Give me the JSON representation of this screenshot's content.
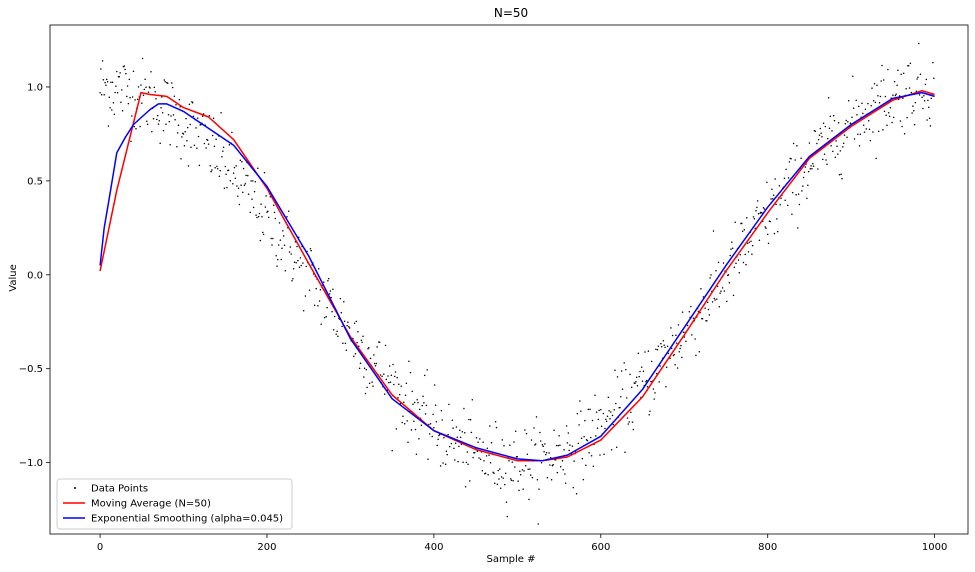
{
  "chart_data": {
    "type": "line",
    "title": "N=50",
    "xlabel": "Sample #",
    "ylabel": "Value",
    "xlim": [
      -60,
      1040
    ],
    "ylim": [
      -1.38,
      1.33
    ],
    "xticks": [
      0,
      200,
      400,
      600,
      800,
      1000
    ],
    "xtick_labels": [
      "0",
      "200",
      "400",
      "600",
      "800",
      "1000"
    ],
    "yticks": [
      -1.0,
      -0.5,
      0.0,
      0.5,
      1.0
    ],
    "ytick_labels": [
      "−1.0",
      "−0.5",
      "0.0",
      "0.5",
      "1.0"
    ],
    "grid": false,
    "legend_position": "lower-left",
    "scatter": {
      "name": "Data Points",
      "color": "#000000",
      "n_points": 1000,
      "x_range": [
        0,
        999
      ],
      "underlying": "sin(2*pi*x/1000 + pi/2)",
      "noise_std": 0.1
    },
    "series": [
      {
        "name": "Moving Average (N=50)",
        "color": "#ff0000",
        "x": [
          0,
          20,
          49,
          60,
          80,
          100,
          130,
          160,
          200,
          250,
          300,
          350,
          400,
          450,
          500,
          530,
          560,
          600,
          650,
          700,
          750,
          800,
          850,
          900,
          950,
          985,
          1000
        ],
        "y": [
          0.02,
          0.45,
          0.97,
          0.96,
          0.95,
          0.89,
          0.84,
          0.72,
          0.46,
          0.06,
          -0.33,
          -0.64,
          -0.83,
          -0.93,
          -0.99,
          -0.99,
          -0.97,
          -0.88,
          -0.65,
          -0.32,
          0.02,
          0.33,
          0.62,
          0.79,
          0.93,
          0.98,
          0.96
        ]
      },
      {
        "name": "Exponential Smoothing (alpha=0.045)",
        "color": "#0000ff",
        "x": [
          0,
          5,
          10,
          20,
          30,
          40,
          50,
          60,
          70,
          80,
          100,
          120,
          160,
          200,
          250,
          300,
          350,
          400,
          450,
          500,
          530,
          560,
          600,
          650,
          700,
          750,
          800,
          850,
          900,
          950,
          985,
          1000
        ],
        "y": [
          0.05,
          0.25,
          0.38,
          0.65,
          0.73,
          0.8,
          0.84,
          0.88,
          0.91,
          0.91,
          0.87,
          0.81,
          0.69,
          0.47,
          0.1,
          -0.34,
          -0.66,
          -0.83,
          -0.92,
          -0.98,
          -0.99,
          -0.96,
          -0.86,
          -0.61,
          -0.28,
          0.05,
          0.36,
          0.63,
          0.8,
          0.94,
          0.97,
          0.95
        ]
      }
    ]
  }
}
